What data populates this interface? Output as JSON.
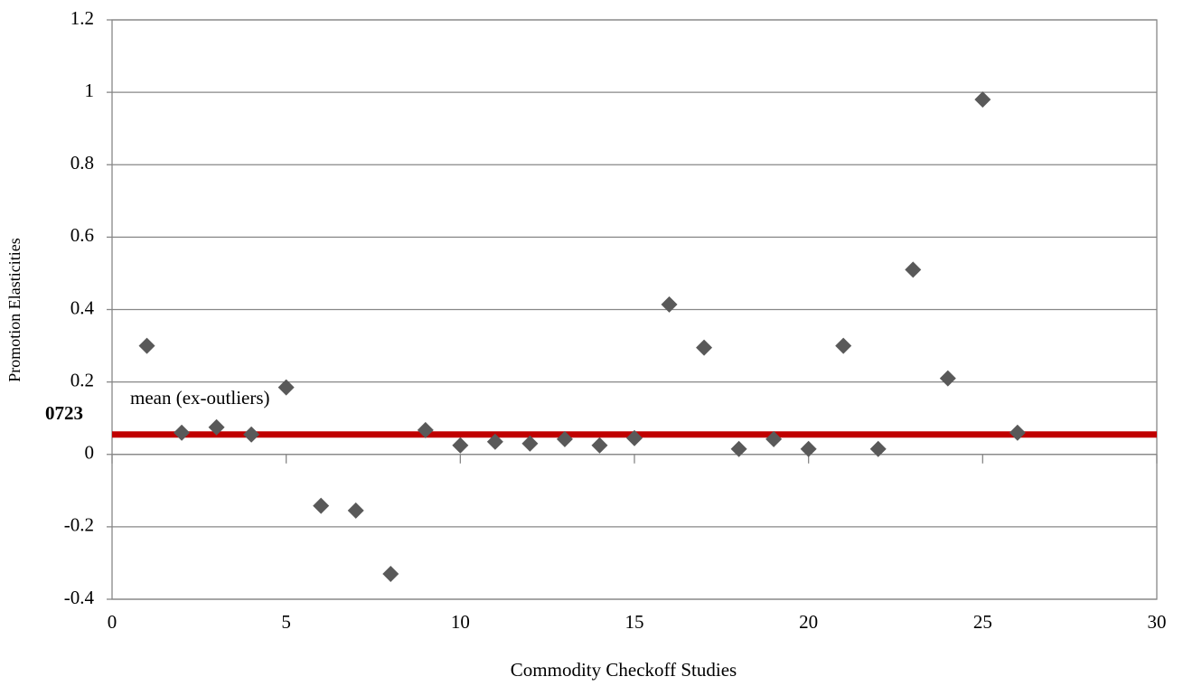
{
  "chart_data": {
    "type": "scatter",
    "x_label": "Commodity Checkoff Studies",
    "y_label": "Promotion Elasticities",
    "x": [
      1,
      2,
      3,
      4,
      5,
      6,
      7,
      8,
      9,
      10,
      11,
      12,
      13,
      14,
      15,
      16,
      17,
      18,
      19,
      20,
      21,
      22,
      23,
      24,
      25,
      26
    ],
    "values": [
      0.3,
      0.06,
      0.075,
      0.055,
      0.185,
      -0.142,
      -0.155,
      -0.33,
      0.067,
      0.025,
      0.035,
      0.03,
      0.042,
      0.025,
      0.045,
      0.414,
      0.295,
      0.015,
      0.042,
      0.015,
      0.3,
      0.015,
      0.51,
      0.21,
      0.98,
      0.06
    ],
    "color": "#595959",
    "xlim": [
      0,
      30
    ],
    "xticks": [
      0,
      5,
      10,
      15,
      20,
      25,
      30
    ],
    "ylim": [
      -0.4,
      1.2
    ],
    "yticks": [
      -0.4,
      -0.2,
      0,
      0.2,
      0.4,
      0.6,
      0.8,
      1,
      1.2
    ],
    "grid": true,
    "mean_line": {
      "value": 0.055,
      "label": "mean (ex-outliers)",
      "color": "#c00000"
    },
    "annotation": "0723"
  }
}
